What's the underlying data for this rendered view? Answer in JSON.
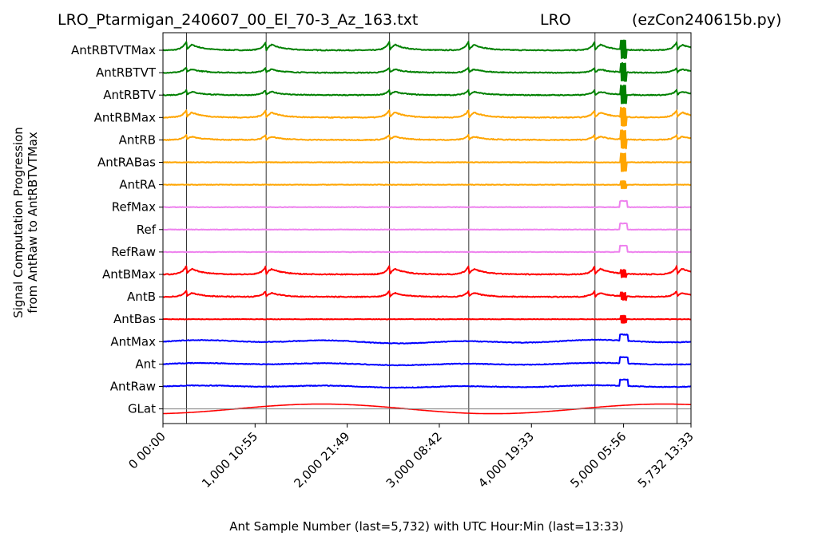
{
  "chart_data": {
    "type": "line",
    "title_left": "LRO_Ptarmigan_240607_00_El_70-3_Az_163.txt",
    "title_center": "LRO",
    "title_right": "(ezCon240615b.py)",
    "ylabel_line1": "Signal Computation Progression",
    "ylabel_line2": "from AntRaw to AntRBTVTMax",
    "xlabel": "Ant Sample Number (last=5,732) with UTC Hour:Min (last=13:33)",
    "xlim": [
      0,
      5732
    ],
    "x_ticks": [
      {
        "value": 0,
        "label": "0  00:00"
      },
      {
        "value": 1000,
        "label": "1,000  10:55"
      },
      {
        "value": 2000,
        "label": "2,000  21:49"
      },
      {
        "value": 3000,
        "label": "3,000  08:42"
      },
      {
        "value": 4000,
        "label": "4,000  19:33"
      },
      {
        "value": 5000,
        "label": "5,000  05:56"
      },
      {
        "value": 5732,
        "label": "5,732  13:33"
      }
    ],
    "vertical_markers": [
      255,
      1120,
      2460,
      3320,
      4690,
      5580
    ],
    "gridlines": false,
    "legend": "none",
    "series": [
      {
        "name": "AntRBTVTMax",
        "color": "#008000",
        "style": "peaky",
        "amp": 0.5
      },
      {
        "name": "AntRBTVT",
        "color": "#008000",
        "style": "peaky",
        "amp": 0.3
      },
      {
        "name": "AntRBTV",
        "color": "#008000",
        "style": "peaky",
        "amp": 0.3
      },
      {
        "name": "AntRBMax",
        "color": "#ffa500",
        "style": "peaky",
        "amp": 0.45
      },
      {
        "name": "AntRB",
        "color": "#ffa500",
        "style": "peaky",
        "amp": 0.3
      },
      {
        "name": "AntRABas",
        "color": "#ffa500",
        "style": "flat",
        "amp": 0.1
      },
      {
        "name": "AntRA",
        "color": "#ffa500",
        "style": "flat",
        "amp": 0.1
      },
      {
        "name": "RefMax",
        "color": "#ee82ee",
        "style": "flatspike",
        "amp": 0.1
      },
      {
        "name": "Ref",
        "color": "#ee82ee",
        "style": "flatspike",
        "amp": 0.1
      },
      {
        "name": "RefRaw",
        "color": "#ee82ee",
        "style": "flatspike",
        "amp": 0.1
      },
      {
        "name": "AntBMax",
        "color": "#ff0000",
        "style": "peaky",
        "amp": 0.5
      },
      {
        "name": "AntB",
        "color": "#ff0000",
        "style": "peaky",
        "amp": 0.35
      },
      {
        "name": "AntBas",
        "color": "#ff0000",
        "style": "flat",
        "amp": 0.1
      },
      {
        "name": "AntMax",
        "color": "#0000ff",
        "style": "wavy",
        "amp": 0.15
      },
      {
        "name": "Ant",
        "color": "#0000ff",
        "style": "wavy",
        "amp": 0.1
      },
      {
        "name": "AntRaw",
        "color": "#0000ff",
        "style": "wavy",
        "amp": 0.1
      },
      {
        "name": "GLat",
        "color": "#ff0000",
        "style": "triangle",
        "amp": 0.5
      }
    ]
  }
}
